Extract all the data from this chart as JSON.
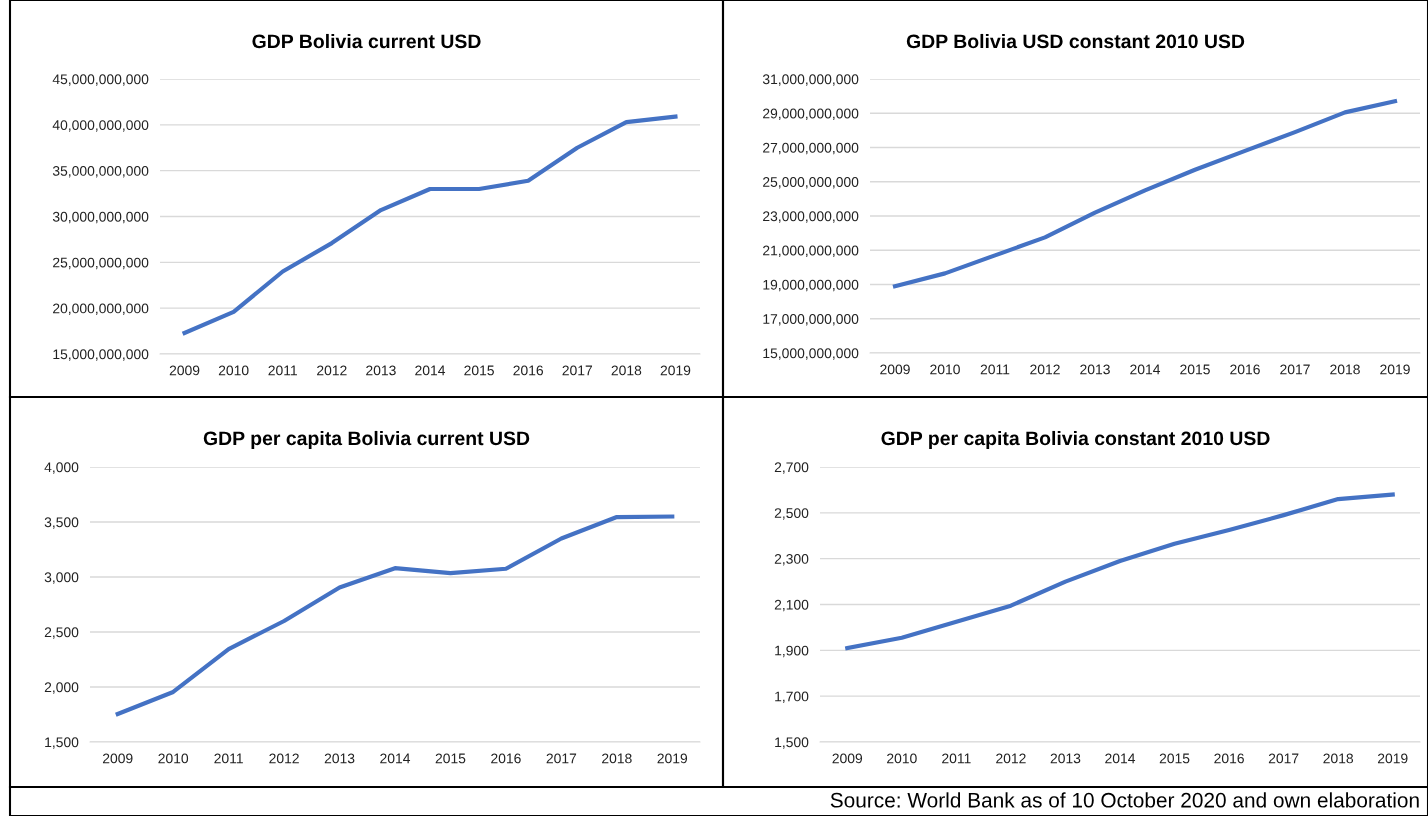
{
  "chart_data": [
    {
      "type": "line",
      "title": "GDP Bolivia current USD",
      "categories": [
        "2009",
        "2010",
        "2011",
        "2012",
        "2013",
        "2014",
        "2015",
        "2016",
        "2017",
        "2018",
        "2019"
      ],
      "series": [
        {
          "color": "#4472c4",
          "values": [
            17300000000,
            19600000000,
            24000000000,
            27100000000,
            30700000000,
            33000000000,
            33000000000,
            33900000000,
            37500000000,
            40300000000,
            40900000000
          ]
        }
      ],
      "ylim": [
        15000000000,
        45000000000
      ],
      "yticks": [
        {
          "value": 15000000000,
          "label": "15,000,000,000"
        },
        {
          "value": 20000000000,
          "label": "20,000,000,000"
        },
        {
          "value": 25000000000,
          "label": "25,000,000,000"
        },
        {
          "value": 30000000000,
          "label": "30,000,000,000"
        },
        {
          "value": 35000000000,
          "label": "35,000,000,000"
        },
        {
          "value": 40000000000,
          "label": "40,000,000,000"
        },
        {
          "value": 45000000000,
          "label": "45,000,000,000"
        }
      ],
      "grid": "y",
      "legend": false,
      "marker": "none",
      "line_style": "solid"
    },
    {
      "type": "line",
      "title": "GDP Bolivia USD constant 2010 USD",
      "categories": [
        "2009",
        "2010",
        "2011",
        "2012",
        "2013",
        "2014",
        "2015",
        "2016",
        "2017",
        "2018",
        "2019"
      ],
      "series": [
        {
          "color": "#4472c4",
          "values": [
            18900000000,
            19650000000,
            20700000000,
            21750000000,
            23200000000,
            24500000000,
            25700000000,
            26800000000,
            27900000000,
            29050000000,
            29700000000
          ]
        }
      ],
      "ylim": [
        15000000000,
        31000000000
      ],
      "yticks": [
        {
          "value": 15000000000,
          "label": "15,000,000,000"
        },
        {
          "value": 17000000000,
          "label": "17,000,000,000"
        },
        {
          "value": 19000000000,
          "label": "19,000,000,000"
        },
        {
          "value": 21000000000,
          "label": "21,000,000,000"
        },
        {
          "value": 23000000000,
          "label": "23,000,000,000"
        },
        {
          "value": 25000000000,
          "label": "25,000,000,000"
        },
        {
          "value": 27000000000,
          "label": "27,000,000,000"
        },
        {
          "value": 29000000000,
          "label": "29,000,000,000"
        },
        {
          "value": 31000000000,
          "label": "31,000,000,000"
        }
      ],
      "grid": "y",
      "legend": false,
      "marker": "none",
      "line_style": "solid"
    },
    {
      "type": "line",
      "title": "GDP per capita Bolivia current USD",
      "categories": [
        "2009",
        "2010",
        "2011",
        "2012",
        "2013",
        "2014",
        "2015",
        "2016",
        "2017",
        "2018",
        "2019"
      ],
      "series": [
        {
          "color": "#4472c4",
          "values": [
            1755,
            1955,
            2345,
            2600,
            2905,
            3080,
            3035,
            3075,
            3350,
            3545,
            3550
          ]
        }
      ],
      "ylim": [
        1500,
        4000
      ],
      "yticks": [
        {
          "value": 1500,
          "label": "1,500"
        },
        {
          "value": 2000,
          "label": "2,000"
        },
        {
          "value": 2500,
          "label": "2,500"
        },
        {
          "value": 3000,
          "label": "3,000"
        },
        {
          "value": 3500,
          "label": "3,500"
        },
        {
          "value": 4000,
          "label": "4,000"
        }
      ],
      "grid": "y",
      "legend": false,
      "marker": "none",
      "line_style": "solid"
    },
    {
      "type": "line",
      "title": "GDP per capita Bolivia constant 2010 USD",
      "categories": [
        "2009",
        "2010",
        "2011",
        "2012",
        "2013",
        "2014",
        "2015",
        "2016",
        "2017",
        "2018",
        "2019"
      ],
      "series": [
        {
          "color": "#4472c4",
          "values": [
            1910,
            1955,
            2025,
            2095,
            2200,
            2290,
            2365,
            2425,
            2490,
            2560,
            2580
          ]
        }
      ],
      "ylim": [
        1500,
        2700
      ],
      "yticks": [
        {
          "value": 1500,
          "label": "1,500"
        },
        {
          "value": 1700,
          "label": "1,700"
        },
        {
          "value": 1900,
          "label": "1,900"
        },
        {
          "value": 2100,
          "label": "2,100"
        },
        {
          "value": 2300,
          "label": "2,300"
        },
        {
          "value": 2500,
          "label": "2,500"
        },
        {
          "value": 2700,
          "label": "2,700"
        }
      ],
      "grid": "y",
      "legend": false,
      "marker": "none",
      "line_style": "solid",
      "annotations": [
        "Source: World Bank as of 10 October 2020 and own elaboration"
      ]
    }
  ]
}
